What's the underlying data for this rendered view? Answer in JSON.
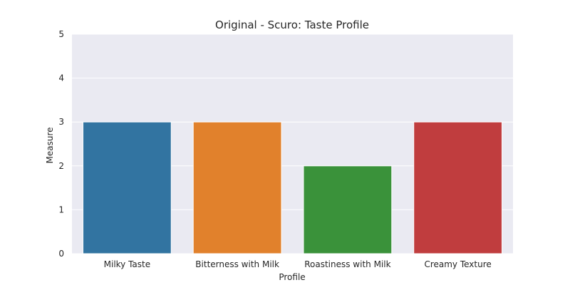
{
  "chart_data": {
    "type": "bar",
    "title": "Original - Scuro: Taste Profile",
    "xlabel": "Profile",
    "ylabel": "Measure",
    "categories": [
      "Milky Taste",
      "Bitterness with Milk",
      "Roastiness with Milk",
      "Creamy Texture"
    ],
    "values": [
      3,
      3,
      2,
      3
    ],
    "ylim": [
      0,
      5
    ],
    "yticks": [
      0,
      1,
      2,
      3,
      4,
      5
    ],
    "colors": [
      "#3274a1",
      "#e1812c",
      "#3a923a",
      "#c03d3e"
    ],
    "background": "#eaeaf2",
    "grid": true
  }
}
